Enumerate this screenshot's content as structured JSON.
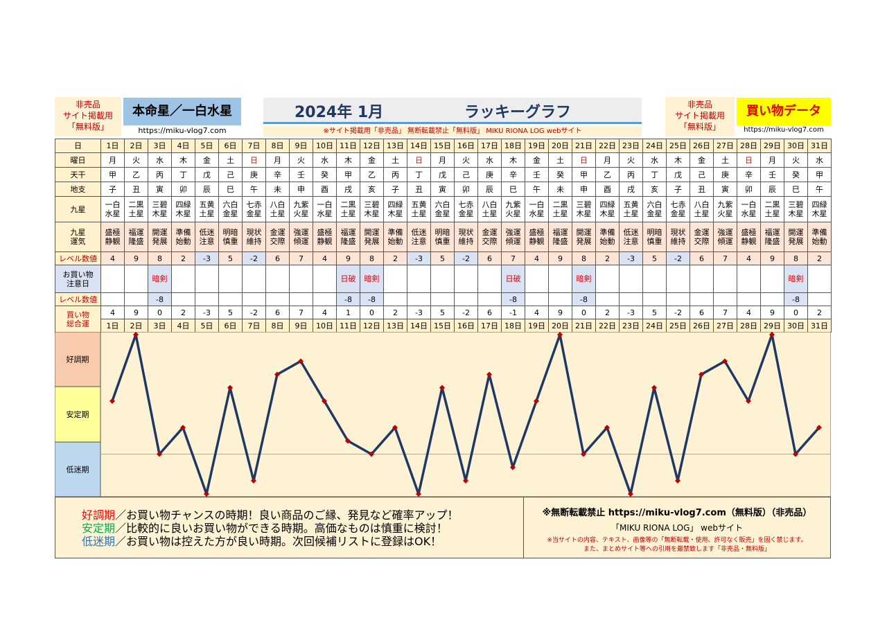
{
  "header": {
    "left_badge": "非売品\nサイト掲載用\n「無料版」",
    "honmeisei": "本命星／一白水星",
    "url_left": "https://miku-vlog7.com",
    "title_month": "2024年 1月",
    "title": "ラッキーグラフ",
    "notice": "※サイト掲載用「非売品」 無断転載禁止「無料版」 MIKU RIONA LOG webサイト",
    "right_badge": "非売品\nサイト掲載用\n「無料版」",
    "data_label": "買い物データ",
    "url_right": "https://miku-vlog7.com"
  },
  "table": {
    "row_labels": [
      "日",
      "曜日",
      "天干",
      "地支",
      "九星",
      "九星\n運気",
      "レベル数値",
      "お買い物\n注意日",
      "レベル数値",
      "買い物\n総合運"
    ],
    "days": [
      "1日",
      "2日",
      "3日",
      "4日",
      "5日",
      "6日",
      "7日",
      "8日",
      "9日",
      "10日",
      "11日",
      "12日",
      "13日",
      "14日",
      "15日",
      "16日",
      "17日",
      "18日",
      "19日",
      "20日",
      "21日",
      "22日",
      "23日",
      "24日",
      "25日",
      "26日",
      "27日",
      "28日",
      "29日",
      "30日",
      "31日"
    ],
    "weekdays": [
      "月",
      "火",
      "水",
      "木",
      "金",
      "土",
      "日",
      "月",
      "火",
      "水",
      "木",
      "金",
      "土",
      "日",
      "月",
      "火",
      "水",
      "木",
      "金",
      "土",
      "日",
      "月",
      "火",
      "水",
      "木",
      "金",
      "土",
      "日",
      "月",
      "火",
      "水"
    ],
    "stems": [
      "甲",
      "乙",
      "丙",
      "丁",
      "戊",
      "己",
      "庚",
      "辛",
      "壬",
      "癸",
      "甲",
      "乙",
      "丙",
      "丁",
      "戊",
      "己",
      "庚",
      "辛",
      "壬",
      "癸",
      "甲",
      "乙",
      "丙",
      "丁",
      "戊",
      "己",
      "庚",
      "辛",
      "壬",
      "癸",
      "甲"
    ],
    "branches": [
      "子",
      "丑",
      "寅",
      "卯",
      "辰",
      "巳",
      "午",
      "未",
      "申",
      "酉",
      "戌",
      "亥",
      "子",
      "丑",
      "寅",
      "卯",
      "辰",
      "巳",
      "午",
      "未",
      "申",
      "酉",
      "戌",
      "亥",
      "子",
      "丑",
      "寅",
      "卯",
      "辰",
      "巳",
      "午"
    ],
    "stars": [
      "一白\n水星",
      "二黒\n土星",
      "三碧\n木星",
      "四緑\n木星",
      "五黄\n土星",
      "六白\n金星",
      "七赤\n金星",
      "八白\n土星",
      "九紫\n火星",
      "一白\n水星",
      "二黒\n土星",
      "三碧\n木星",
      "四緑\n木星",
      "五黄\n土星",
      "六白\n金星",
      "七赤\n金星",
      "八白\n土星",
      "九紫\n火星",
      "一白\n水星",
      "二黒\n土星",
      "三碧\n木星",
      "四緑\n木星",
      "五黄\n土星",
      "六白\n金星",
      "七赤\n金星",
      "八白\n土星",
      "九紫\n火星",
      "一白\n水星",
      "二黒\n土星",
      "三碧\n木星",
      "四緑\n木星"
    ],
    "fortunes": [
      "盛極\n静観",
      "福運\n隆盛",
      "開運\n発展",
      "準備\n始動",
      "低迷\n注意",
      "明暗\n慎重",
      "現状\n維持",
      "金運\n交際",
      "強運\n傾運",
      "盛極\n静観",
      "福運\n隆盛",
      "開運\n発展",
      "準備\n始動",
      "低迷\n注意",
      "明暗\n慎重",
      "現状\n維持",
      "金運\n交際",
      "強運\n傾運",
      "盛極\n静観",
      "福運\n隆盛",
      "開運\n発展",
      "準備\n始動",
      "低迷\n注意",
      "明暗\n慎重",
      "現状\n維持",
      "金運\n交際",
      "強運\n傾運",
      "盛極\n静観",
      "福運\n隆盛",
      "開運\n発展",
      "準備\n始動"
    ],
    "levels": [
      4,
      9,
      8,
      2,
      -3,
      5,
      -2,
      6,
      7,
      4,
      9,
      8,
      2,
      -3,
      5,
      -2,
      6,
      7,
      4,
      9,
      8,
      2,
      -3,
      5,
      -2,
      6,
      7,
      4,
      9,
      8,
      2
    ],
    "caution_days": [
      null,
      null,
      "暗剣",
      null,
      null,
      null,
      null,
      null,
      null,
      null,
      "日破",
      "暗剣",
      null,
      null,
      null,
      null,
      null,
      "日破",
      null,
      null,
      "暗剣",
      null,
      null,
      null,
      null,
      null,
      null,
      null,
      null,
      "暗剣",
      null
    ],
    "caution_levels": [
      null,
      null,
      -8,
      null,
      null,
      null,
      null,
      null,
      null,
      null,
      -8,
      -8,
      null,
      null,
      null,
      null,
      null,
      -8,
      null,
      null,
      -8,
      null,
      null,
      null,
      null,
      null,
      null,
      null,
      null,
      -8,
      null
    ]
  },
  "chart_data": {
    "type": "line",
    "categories": [
      "1日",
      "2日",
      "3日",
      "4日",
      "5日",
      "6日",
      "7日",
      "8日",
      "9日",
      "10日",
      "11日",
      "12日",
      "13日",
      "14日",
      "15日",
      "16日",
      "17日",
      "18日",
      "19日",
      "20日",
      "21日",
      "22日",
      "23日",
      "24日",
      "25日",
      "26日",
      "27日",
      "28日",
      "29日",
      "30日",
      "31日"
    ],
    "values": [
      4,
      9,
      0,
      2,
      -3,
      5,
      -2,
      6,
      7,
      4,
      1,
      0,
      2,
      -3,
      5,
      -2,
      6,
      -1,
      4,
      9,
      0,
      2,
      -3,
      5,
      -2,
      6,
      7,
      4,
      9,
      0,
      2
    ],
    "color": "#1f3864",
    "marker_color": "#c00000",
    "ylim": [
      -3,
      9
    ],
    "baseline": 0,
    "bands": [
      {
        "label": "好調期",
        "color": "#f8cbad"
      },
      {
        "label": "安定期",
        "color": "#ffff99"
      },
      {
        "label": "低迷期",
        "color": "#bdd7ee"
      }
    ]
  },
  "footer": {
    "legend": [
      {
        "term": "好調期",
        "text": "／お買い物チャンスの時期！良い商品のご縁、発見など確率アップ！"
      },
      {
        "term": "安定期",
        "text": "／比較的に良いお買い物ができる時期。高価なものは慎重に検討！"
      },
      {
        "term": "低迷期",
        "text": "／お買い物は控えた方が良い時期。次回候補リストに登録はOK！"
      }
    ],
    "notice_1": "※無断転載禁止 https://miku-vlog7.com（無料版）（非売品）",
    "notice_2": "「MIKU RIONA LOG」 webサイト",
    "notice_3": "※当サイトの内容、テキスト、画像等の「無断転載・使用、許可なく販売」を固く禁じます。",
    "notice_4": "また、まとめサイト等への引用を厳禁致します「非売品・無料版」"
  }
}
